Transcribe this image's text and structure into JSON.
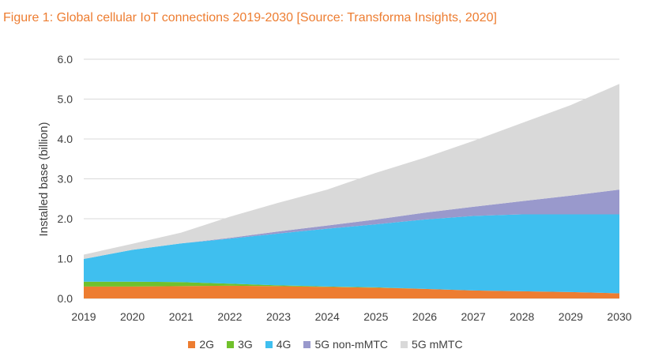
{
  "title": "Figure 1: Global cellular IoT connections 2019-2030 [Source: Transforma Insights, 2020]",
  "chart_data": {
    "type": "area",
    "stacked": true,
    "x": [
      "2019",
      "2020",
      "2021",
      "2022",
      "2023",
      "2024",
      "2025",
      "2026",
      "2027",
      "2028",
      "2029",
      "2030"
    ],
    "ylabel": "Installed base (billion)",
    "ylim": [
      0,
      6
    ],
    "yticks": [
      "0.0",
      "1.0",
      "2.0",
      "3.0",
      "4.0",
      "5.0",
      "6.0"
    ],
    "grid": true,
    "legend_position": "bottom",
    "series": [
      {
        "name": "2G",
        "color": "#ED7D31",
        "values": [
          0.3,
          0.3,
          0.31,
          0.32,
          0.31,
          0.29,
          0.27,
          0.24,
          0.2,
          0.18,
          0.16,
          0.13
        ]
      },
      {
        "name": "3G",
        "color": "#70C12B",
        "values": [
          0.12,
          0.12,
          0.1,
          0.05,
          0.02,
          0.01,
          0.01,
          0.0,
          0.0,
          0.0,
          0.0,
          0.0
        ]
      },
      {
        "name": "4G",
        "color": "#3FBFEF",
        "values": [
          0.57,
          0.8,
          0.97,
          1.13,
          1.3,
          1.45,
          1.58,
          1.74,
          1.87,
          1.93,
          1.95,
          1.98
        ]
      },
      {
        "name": "5G non-mMTC",
        "color": "#9999CC",
        "values": [
          0.0,
          0.0,
          0.0,
          0.02,
          0.05,
          0.08,
          0.12,
          0.17,
          0.23,
          0.33,
          0.47,
          0.62
        ]
      },
      {
        "name": "5G mMTC",
        "color": "#D9D9D9",
        "values": [
          0.11,
          0.15,
          0.27,
          0.53,
          0.72,
          0.9,
          1.17,
          1.38,
          1.65,
          1.96,
          2.27,
          2.65
        ]
      }
    ]
  }
}
